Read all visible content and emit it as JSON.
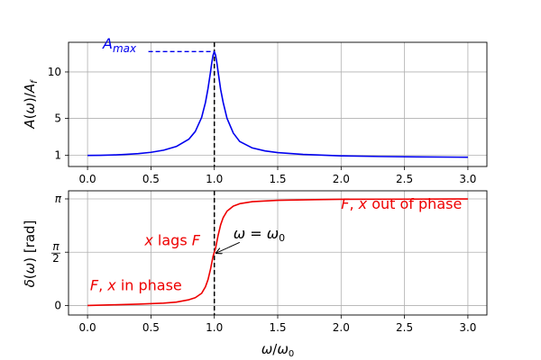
{
  "chart_data": [
    {
      "type": "line",
      "panel": "top",
      "ylabel": "A(ω)/A_f",
      "xlim": [
        -0.15,
        3.15
      ],
      "ylim": [
        -0.2,
        13.2
      ],
      "xticks": [
        0.0,
        0.5,
        1.0,
        1.5,
        2.0,
        2.5,
        3.0
      ],
      "xtick_labels": [
        "0.0",
        "0.5",
        "1.0",
        "1.5",
        "2.0",
        "2.5",
        "3.0"
      ],
      "yticks": [
        1,
        5,
        10
      ],
      "ytick_labels": [
        "1",
        "5",
        "10"
      ],
      "grid": true,
      "series": [
        {
          "name": "amplitude",
          "color": "#0000ee",
          "x": [
            0.0,
            0.1,
            0.2,
            0.3,
            0.4,
            0.5,
            0.6,
            0.7,
            0.8,
            0.85,
            0.9,
            0.93,
            0.95,
            0.97,
            0.98,
            0.99,
            1.0,
            1.01,
            1.02,
            1.03,
            1.05,
            1.07,
            1.1,
            1.15,
            1.2,
            1.3,
            1.4,
            1.5,
            1.7,
            2.0,
            2.3,
            2.6,
            3.0
          ],
          "values": [
            1.0,
            1.01,
            1.04,
            1.1,
            1.19,
            1.33,
            1.56,
            1.96,
            2.76,
            3.58,
            5.1,
            6.7,
            8.2,
            10.0,
            11.0,
            11.8,
            12.2,
            11.8,
            11.0,
            10.0,
            8.1,
            6.7,
            5.0,
            3.4,
            2.5,
            1.8,
            1.48,
            1.3,
            1.1,
            0.95,
            0.88,
            0.84,
            0.8
          ]
        }
      ],
      "annotations": {
        "amax_label": "A",
        "amax_subscript": "max",
        "amax_value": 12.2,
        "amax_line_from_x": 0.48,
        "resonance_x": 1.0
      }
    },
    {
      "type": "line",
      "panel": "bottom",
      "xlabel": "ω/ω₀",
      "ylabel": "δ(ω) [rad]",
      "xlim": [
        -0.15,
        3.15
      ],
      "ylim": [
        -0.28,
        3.38
      ],
      "xticks": [
        0.0,
        0.5,
        1.0,
        1.5,
        2.0,
        2.5,
        3.0
      ],
      "xtick_labels": [
        "0.0",
        "0.5",
        "1.0",
        "1.5",
        "2.0",
        "2.5",
        "3.0"
      ],
      "yticks": [
        0,
        1.5708,
        3.1416
      ],
      "ytick_labels": [
        "0",
        "π/2",
        "π"
      ],
      "grid": true,
      "series": [
        {
          "name": "phase",
          "color": "#ee0000",
          "x": [
            0.0,
            0.2,
            0.4,
            0.6,
            0.7,
            0.8,
            0.85,
            0.9,
            0.93,
            0.95,
            0.97,
            0.99,
            1.0,
            1.01,
            1.03,
            1.05,
            1.07,
            1.1,
            1.15,
            1.2,
            1.3,
            1.5,
            1.8,
            2.0,
            2.5,
            3.0
          ],
          "values": [
            0.0,
            0.02,
            0.04,
            0.07,
            0.1,
            0.17,
            0.23,
            0.36,
            0.55,
            0.76,
            1.07,
            1.45,
            1.5708,
            1.69,
            2.07,
            2.38,
            2.59,
            2.78,
            2.93,
            3.0,
            3.06,
            3.1,
            3.12,
            3.13,
            3.135,
            3.14
          ]
        }
      ],
      "annotations": {
        "in_phase": {
          "text": "F, x in phase",
          "x": 0.02,
          "y": 0.45
        },
        "out_of_phase": {
          "text": "F, x out of phase",
          "x": 2.0,
          "y": 2.85
        },
        "x_lags": {
          "text": "x lags F",
          "x": 0.45,
          "y": 1.78
        },
        "resonance": {
          "text": "ω = ω₀",
          "x": 1.15,
          "y": 1.98
        },
        "arrow_to": [
          1.0,
          1.5708
        ],
        "resonance_x": 1.0
      }
    }
  ]
}
